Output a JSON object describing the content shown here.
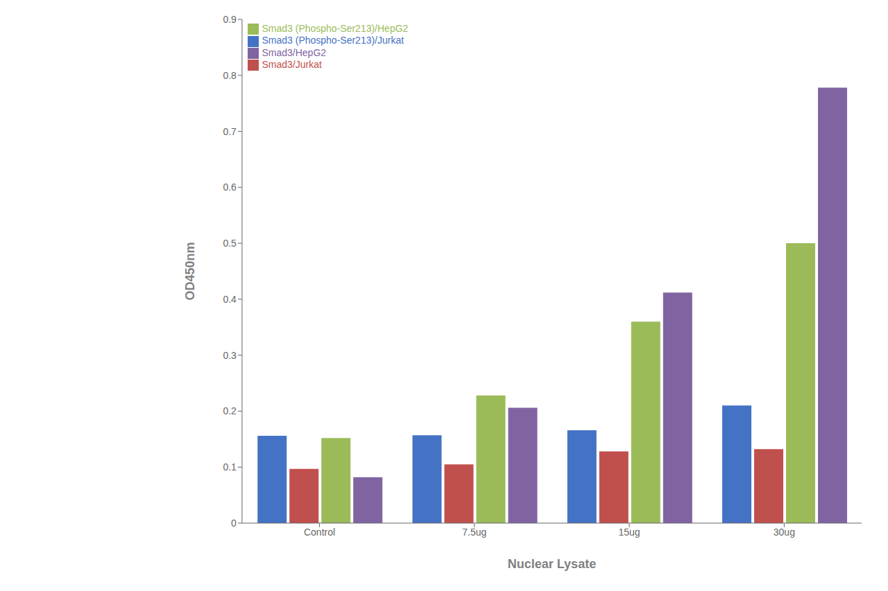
{
  "chart_data": {
    "type": "bar",
    "categories": [
      "Control",
      "7.5ug",
      "15ug",
      "30ug"
    ],
    "series": [
      {
        "name": "Smad3 (Phospho-Ser213)/Jurkat",
        "color": "#4472C4",
        "values": [
          0.156,
          0.157,
          0.166,
          0.21
        ]
      },
      {
        "name": "Smad3/Jurkat",
        "color": "#C0504D",
        "values": [
          0.097,
          0.105,
          0.128,
          0.132
        ]
      },
      {
        "name": "Smad3 (Phospho-Ser213)/HepG2",
        "color": "#9BBB59",
        "values": [
          0.152,
          0.228,
          0.36,
          0.5
        ]
      },
      {
        "name": "Smad3/HepG2",
        "color": "#8064A2",
        "values": [
          0.082,
          0.206,
          0.412,
          0.778
        ]
      }
    ],
    "xlabel": "Nuclear Lysate",
    "ylabel": "OD450nm",
    "ylim": [
      0,
      0.9
    ],
    "yticks": [
      0,
      0.1,
      0.2,
      0.3,
      0.4,
      0.5,
      0.6,
      0.7,
      0.8,
      0.9
    ],
    "grid": false,
    "legend": "upper left"
  }
}
